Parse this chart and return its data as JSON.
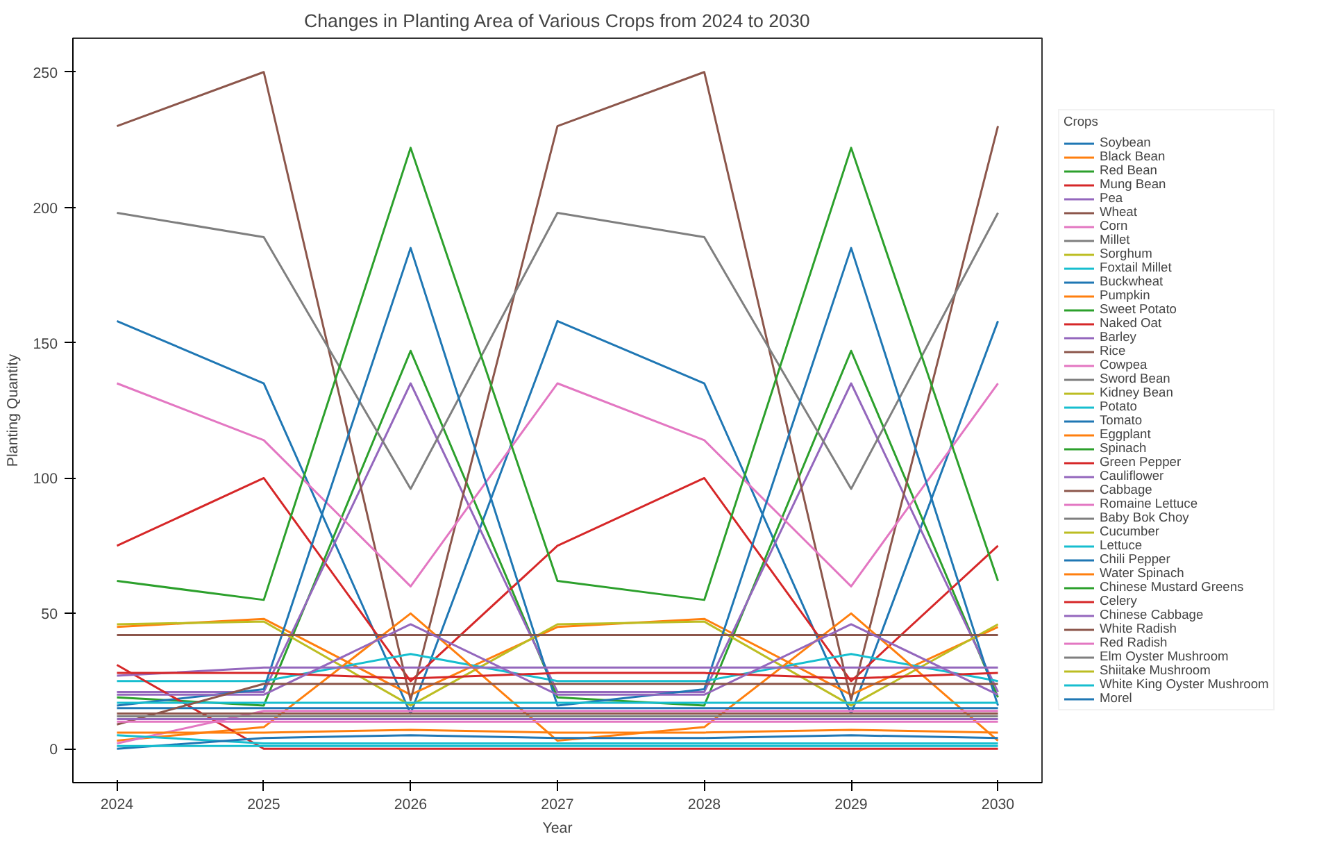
{
  "chart_data": {
    "type": "line",
    "title": "Changes in Planting Area of Various Crops from 2024 to 2030",
    "xlabel": "Year",
    "ylabel": "Planting Quantity",
    "legend_title": "Crops",
    "legend": "right",
    "grid": false,
    "x": [
      2024,
      2025,
      2026,
      2027,
      2028,
      2029,
      2030
    ],
    "xlim": [
      2023.7,
      2030.3
    ],
    "ylim": [
      -12.5,
      262.5
    ],
    "xticks": [
      2024,
      2025,
      2026,
      2027,
      2028,
      2029,
      2030
    ],
    "yticks": [
      0,
      50,
      100,
      150,
      200,
      250
    ],
    "series": [
      {
        "name": "Soybean",
        "color": "#1f77b4",
        "values": [
          158,
          135,
          13,
          158,
          135,
          13,
          158
        ]
      },
      {
        "name": "Black Bean",
        "color": "#ff7f0e",
        "values": [
          45,
          48,
          20,
          45,
          48,
          20,
          45
        ]
      },
      {
        "name": "Red Bean",
        "color": "#2ca02c",
        "values": [
          19,
          16,
          147,
          19,
          16,
          147,
          19
        ]
      },
      {
        "name": "Mung Bean",
        "color": "#d62728",
        "values": [
          75,
          100,
          25,
          75,
          100,
          25,
          75
        ]
      },
      {
        "name": "Pea",
        "color": "#9467bd",
        "values": [
          21,
          21,
          135,
          21,
          21,
          135,
          21
        ]
      },
      {
        "name": "Wheat",
        "color": "#8c564b",
        "values": [
          230,
          250,
          18,
          230,
          250,
          18,
          230
        ]
      },
      {
        "name": "Corn",
        "color": "#e377c2",
        "values": [
          135,
          114,
          60,
          135,
          114,
          60,
          135
        ]
      },
      {
        "name": "Millet",
        "color": "#7f7f7f",
        "values": [
          198,
          189,
          96,
          198,
          189,
          96,
          198
        ]
      },
      {
        "name": "Sorghum",
        "color": "#bcbd22",
        "values": [
          46,
          47,
          16,
          46,
          47,
          16,
          46
        ]
      },
      {
        "name": "Foxtail Millet",
        "color": "#17becf",
        "values": [
          25,
          25,
          35,
          25,
          25,
          35,
          25
        ]
      },
      {
        "name": "Buckwheat",
        "color": "#1f77b4",
        "values": [
          16,
          22,
          185,
          16,
          22,
          185,
          16
        ]
      },
      {
        "name": "Pumpkin",
        "color": "#ff7f0e",
        "values": [
          3,
          8,
          50,
          3,
          8,
          50,
          3
        ]
      },
      {
        "name": "Sweet Potato",
        "color": "#2ca02c",
        "values": [
          62,
          55,
          222,
          62,
          55,
          222,
          62
        ]
      },
      {
        "name": "Naked Oat",
        "color": "#d62728",
        "values": [
          31,
          0,
          0,
          0,
          0,
          0,
          0
        ]
      },
      {
        "name": "Barley",
        "color": "#9467bd",
        "values": [
          27,
          30,
          30,
          30,
          30,
          30,
          30
        ]
      },
      {
        "name": "Rice",
        "color": "#8c564b",
        "values": [
          42,
          42,
          42,
          42,
          42,
          42,
          42
        ]
      },
      {
        "name": "Cowpea",
        "color": "#e377c2",
        "values": [
          2,
          14,
          14,
          14,
          14,
          14,
          14
        ]
      },
      {
        "name": "Sword Bean",
        "color": "#7f7f7f",
        "values": [
          null,
          null,
          null,
          null,
          null,
          null,
          null
        ]
      },
      {
        "name": "Kidney Bean",
        "color": "#bcbd22",
        "values": [
          null,
          null,
          null,
          null,
          null,
          null,
          null
        ]
      },
      {
        "name": "Potato",
        "color": "#17becf",
        "values": [
          17,
          17,
          17,
          17,
          17,
          17,
          17
        ]
      },
      {
        "name": "Tomato",
        "color": "#1f77b4",
        "values": [
          15,
          15,
          15,
          15,
          15,
          15,
          15
        ]
      },
      {
        "name": "Eggplant",
        "color": "#ff7f0e",
        "values": [
          6,
          6,
          7,
          6,
          6,
          7,
          6
        ]
      },
      {
        "name": "Spinach",
        "color": "#2ca02c",
        "values": [
          null,
          null,
          null,
          null,
          null,
          null,
          null
        ]
      },
      {
        "name": "Green Pepper",
        "color": "#d62728",
        "values": [
          28,
          28,
          26,
          28,
          28,
          26,
          28
        ]
      },
      {
        "name": "Cauliflower",
        "color": "#9467bd",
        "values": [
          20,
          20,
          46,
          20,
          20,
          46,
          20
        ]
      },
      {
        "name": "Cabbage",
        "color": "#8c564b",
        "values": [
          9,
          24,
          24,
          24,
          24,
          24,
          24
        ]
      },
      {
        "name": "Romaine Lettuce",
        "color": "#e377c2",
        "values": [
          null,
          null,
          null,
          null,
          null,
          null,
          null
        ]
      },
      {
        "name": "Baby Bok Choy",
        "color": "#7f7f7f",
        "values": [
          12,
          12,
          12,
          12,
          12,
          12,
          12
        ]
      },
      {
        "name": "Cucumber",
        "color": "#bcbd22",
        "values": [
          null,
          null,
          null,
          null,
          null,
          null,
          null
        ]
      },
      {
        "name": "Lettuce",
        "color": "#17becf",
        "values": [
          5,
          2,
          2,
          2,
          2,
          2,
          2
        ]
      },
      {
        "name": "Chili Pepper",
        "color": "#1f77b4",
        "values": [
          0,
          4,
          5,
          4,
          4,
          5,
          4
        ]
      },
      {
        "name": "Water Spinach",
        "color": "#ff7f0e",
        "values": [
          null,
          null,
          null,
          null,
          null,
          null,
          null
        ]
      },
      {
        "name": "Chinese Mustard Greens",
        "color": "#2ca02c",
        "values": [
          null,
          null,
          null,
          null,
          null,
          null,
          null
        ]
      },
      {
        "name": "Celery",
        "color": "#d62728",
        "values": [
          null,
          null,
          null,
          null,
          null,
          null,
          null
        ]
      },
      {
        "name": "Chinese Cabbage",
        "color": "#9467bd",
        "values": [
          11,
          11,
          11,
          11,
          11,
          11,
          11
        ]
      },
      {
        "name": "White Radish",
        "color": "#8c564b",
        "values": [
          13,
          13,
          13,
          13,
          13,
          13,
          13
        ]
      },
      {
        "name": "Red Radish",
        "color": "#e377c2",
        "values": [
          10,
          10,
          10,
          10,
          10,
          10,
          10
        ]
      },
      {
        "name": "Elm Oyster Mushroom",
        "color": "#7f7f7f",
        "values": [
          null,
          null,
          null,
          null,
          null,
          null,
          null
        ]
      },
      {
        "name": "Shiitake Mushroom",
        "color": "#bcbd22",
        "values": [
          null,
          null,
          null,
          null,
          null,
          null,
          null
        ]
      },
      {
        "name": "White King Oyster Mushroom",
        "color": "#17becf",
        "values": [
          1,
          1,
          1,
          1,
          1,
          1,
          1
        ]
      },
      {
        "name": "Morel",
        "color": "#1f77b4",
        "values": [
          null,
          null,
          null,
          null,
          null,
          null,
          null
        ]
      }
    ]
  }
}
